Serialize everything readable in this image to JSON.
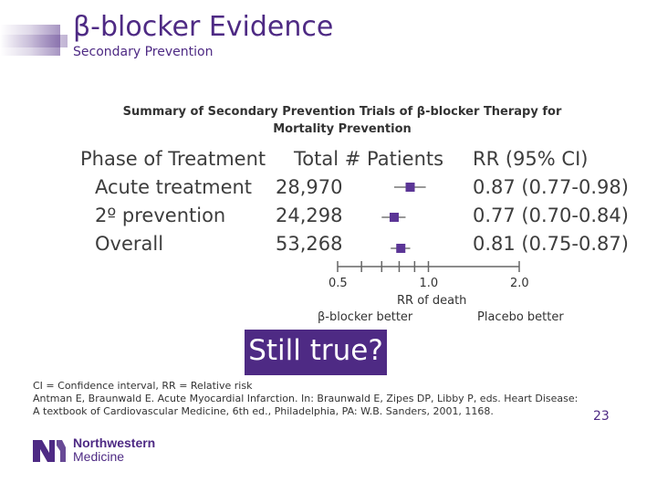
{
  "header": {
    "title": "β-blocker Evidence",
    "subtitle": "Secondary Prevention"
  },
  "summary": {
    "line1": "Summary of Secondary Prevention Trials of β-blocker Therapy for",
    "line2": "Mortality Prevention"
  },
  "table": {
    "headers": {
      "phase": "Phase of Treatment",
      "patients": "Total # Patients",
      "rr": "RR (95% CI)"
    },
    "rows": [
      {
        "phase": "Acute treatment",
        "patients": "28,970",
        "rr": "0.87 (0.77-0.98)"
      },
      {
        "phase": "2º prevention",
        "patients": "24,298",
        "rr": "0.77 (0.70-0.84)"
      },
      {
        "phase": "Overall",
        "patients": "53,268",
        "rr": "0.81 (0.75-0.87)"
      }
    ]
  },
  "chart_data": {
    "type": "scatter",
    "title": "",
    "xlabel": "RR of death",
    "x_scale": "log",
    "xlim": [
      0.5,
      2.0
    ],
    "ticks": [
      "0.5",
      "1.0",
      "2.0"
    ],
    "left_label": "β-blocker better",
    "right_label": "Placebo better",
    "series": [
      {
        "name": "Acute treatment",
        "rr": 0.87,
        "ci": [
          0.77,
          0.98
        ]
      },
      {
        "name": "2º prevention",
        "rr": 0.77,
        "ci": [
          0.7,
          0.84
        ]
      },
      {
        "name": "Overall",
        "rr": 0.81,
        "ci": [
          0.75,
          0.87
        ]
      }
    ],
    "marker_color": "#5b3596"
  },
  "callout": "Still true?",
  "footnotes": {
    "line1": "CI = Confidence interval, RR = Relative risk",
    "line2": "Antman E, Braunwald E. Acute Myocardial Infarction. In: Braunwald E, Zipes DP, Libby P, eds. Heart Disease:",
    "line3": "A textbook of Cardiovascular Medicine, 6th ed., Philadelphia, PA: W.B. Sanders, 2001, 1168."
  },
  "page_number": "23",
  "logo": {
    "line1": "Northwestern",
    "line2": "Medicine",
    "icon": "nm-logo-icon"
  },
  "colors": {
    "brand": "#4e2a84",
    "text": "#333333"
  }
}
